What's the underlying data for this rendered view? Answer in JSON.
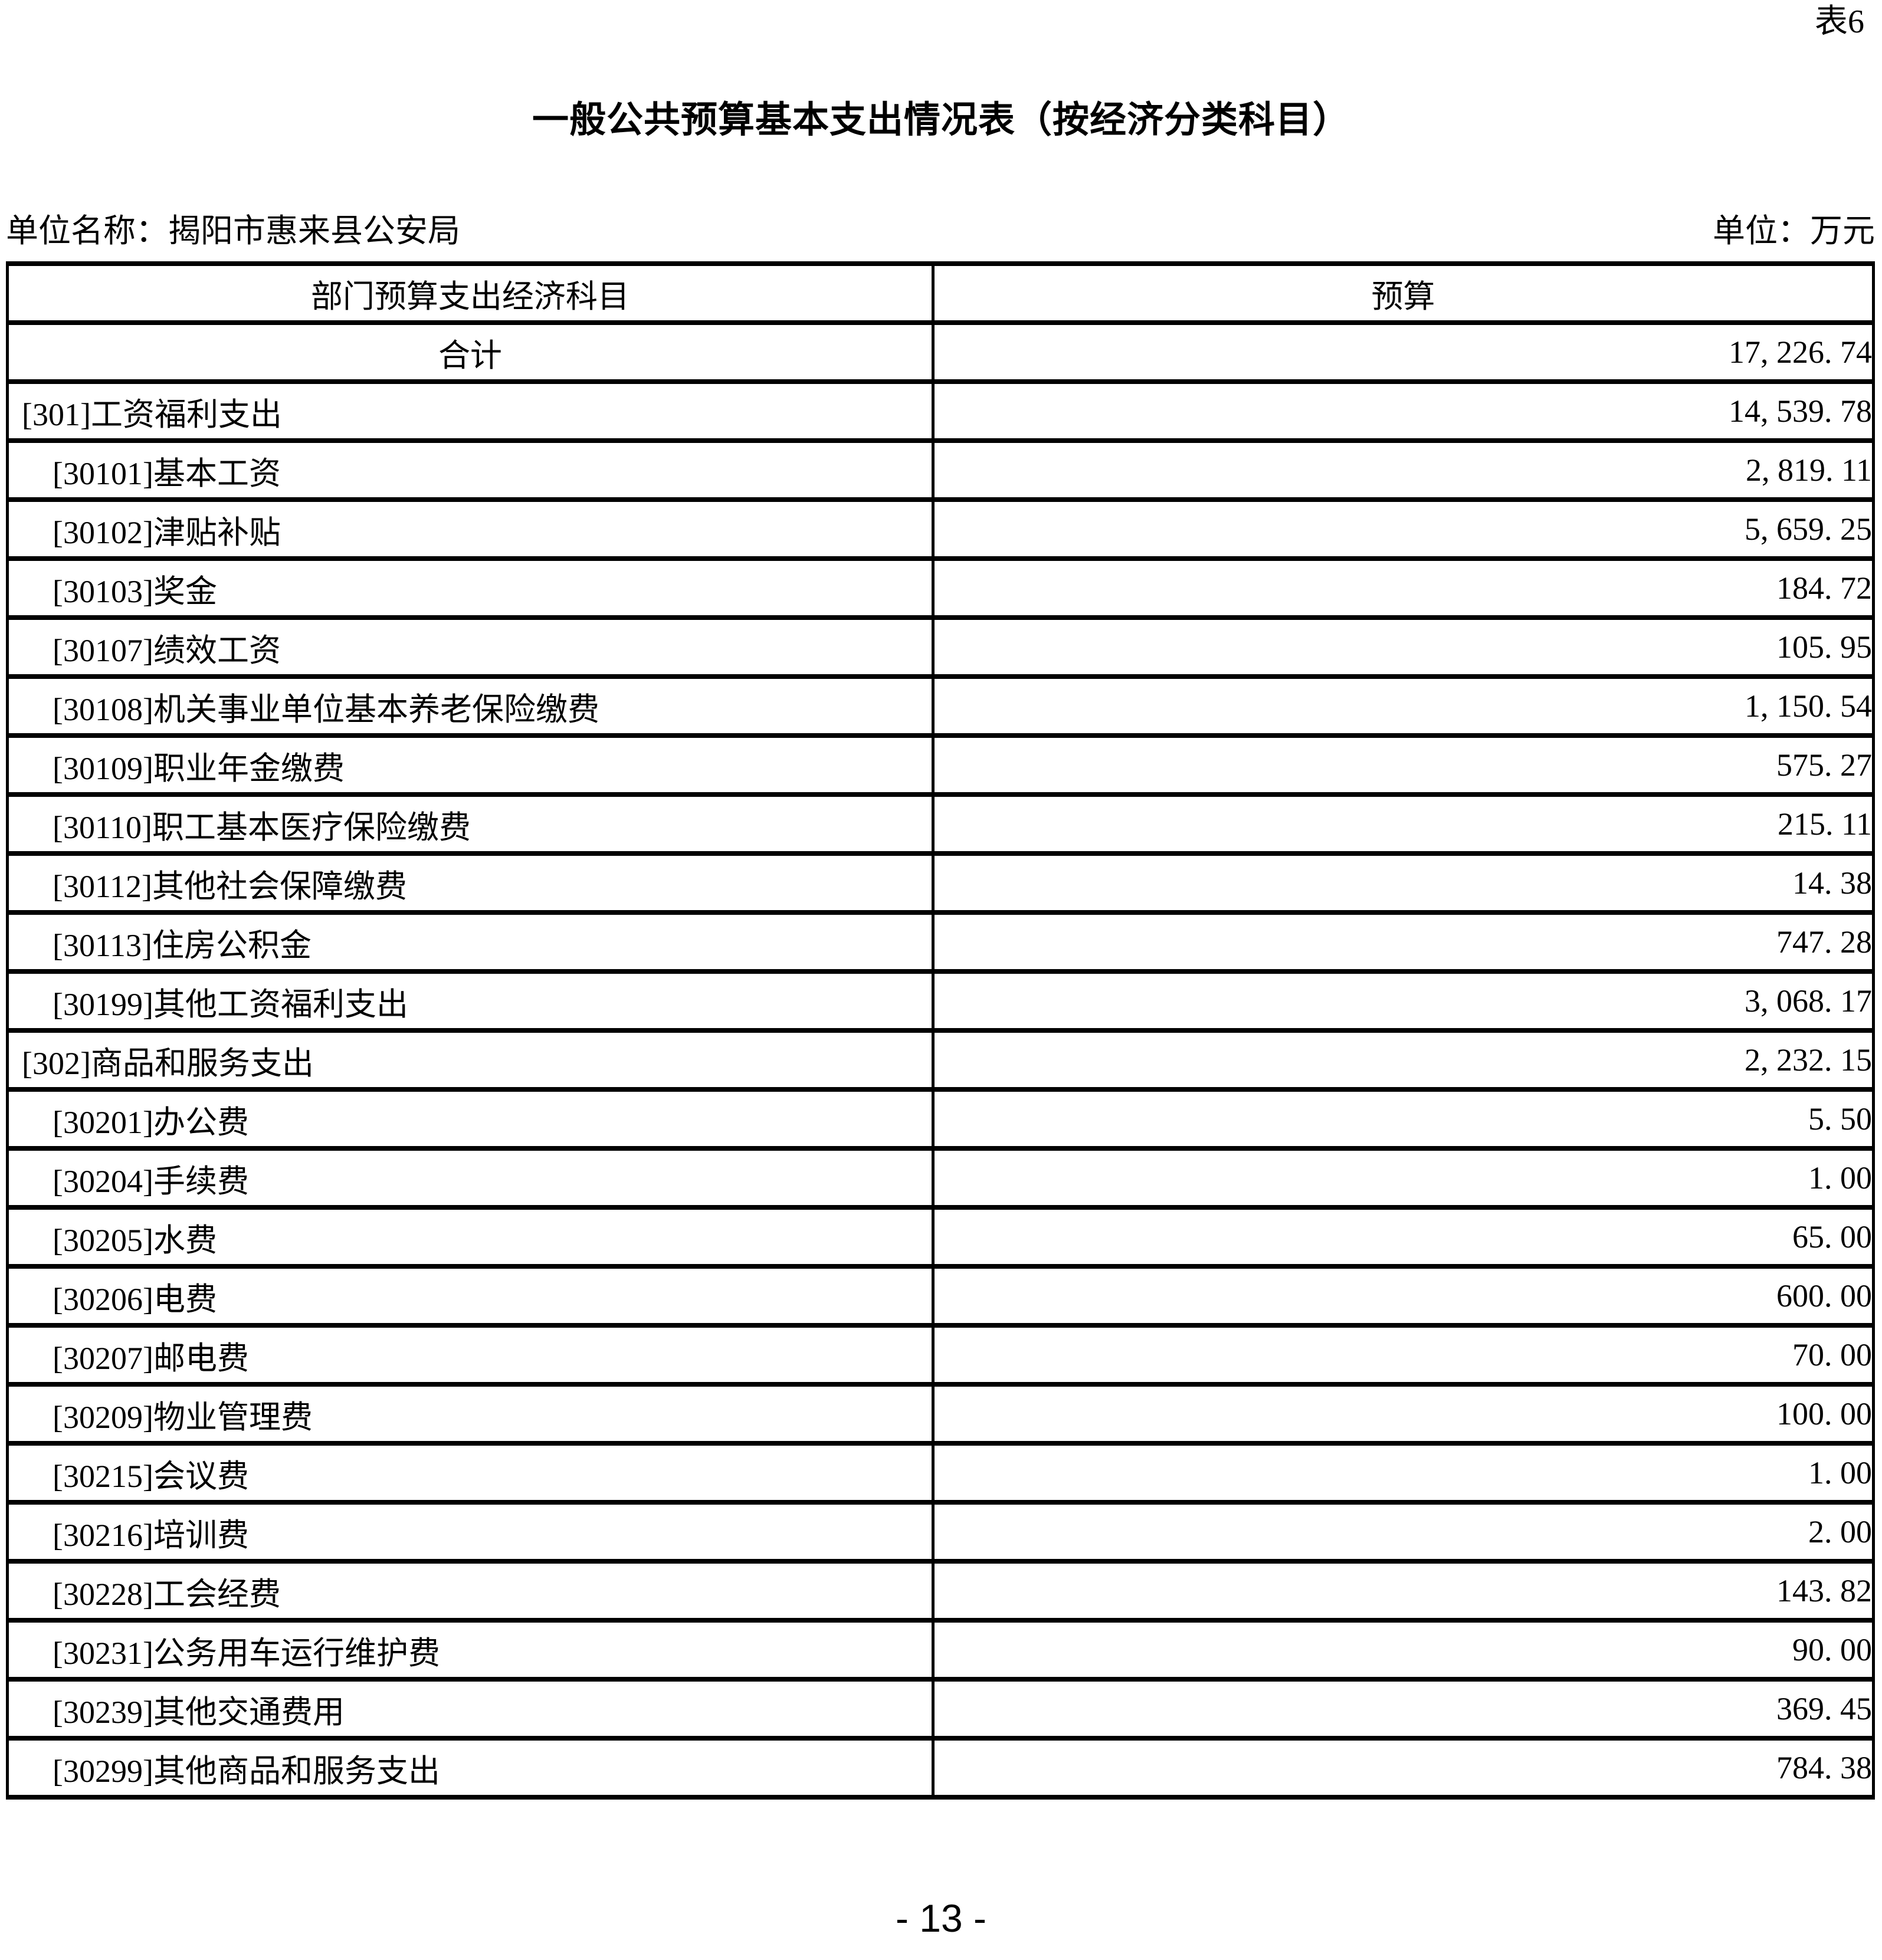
{
  "page": {
    "sheet_label": "表6",
    "title": "一般公共预算基本支出情况表（按经济分类科目）",
    "unit_name_line": "单位名称：揭阳市惠来县公安局",
    "unit_label": "单位：万元",
    "page_number": "- 13 -"
  },
  "table": {
    "columns": [
      "部门预算支出经济科目",
      "预算"
    ],
    "rows": [
      {
        "subject": "合计",
        "budget": "17, 226. 74",
        "style": "total"
      },
      {
        "subject": "[301]工资福利支出",
        "budget": "14, 539. 78",
        "style": "category"
      },
      {
        "subject": "[30101]基本工资",
        "budget": "2, 819. 11",
        "style": "item"
      },
      {
        "subject": "[30102]津贴补贴",
        "budget": "5, 659. 25",
        "style": "item"
      },
      {
        "subject": "[30103]奖金",
        "budget": "184. 72",
        "style": "item"
      },
      {
        "subject": "[30107]绩效工资",
        "budget": "105. 95",
        "style": "item"
      },
      {
        "subject": "[30108]机关事业单位基本养老保险缴费",
        "budget": "1, 150. 54",
        "style": "item"
      },
      {
        "subject": "[30109]职业年金缴费",
        "budget": "575. 27",
        "style": "item"
      },
      {
        "subject": "[30110]职工基本医疗保险缴费",
        "budget": "215. 11",
        "style": "item"
      },
      {
        "subject": "[30112]其他社会保障缴费",
        "budget": "14. 38",
        "style": "item"
      },
      {
        "subject": "[30113]住房公积金",
        "budget": "747. 28",
        "style": "item"
      },
      {
        "subject": "[30199]其他工资福利支出",
        "budget": "3, 068. 17",
        "style": "item"
      },
      {
        "subject": "[302]商品和服务支出",
        "budget": "2, 232. 15",
        "style": "category"
      },
      {
        "subject": "[30201]办公费",
        "budget": "5. 50",
        "style": "item"
      },
      {
        "subject": "[30204]手续费",
        "budget": "1. 00",
        "style": "item"
      },
      {
        "subject": "[30205]水费",
        "budget": "65. 00",
        "style": "item"
      },
      {
        "subject": "[30206]电费",
        "budget": "600. 00",
        "style": "item"
      },
      {
        "subject": "[30207]邮电费",
        "budget": "70. 00",
        "style": "item"
      },
      {
        "subject": "[30209]物业管理费",
        "budget": "100. 00",
        "style": "item"
      },
      {
        "subject": "[30215]会议费",
        "budget": "1. 00",
        "style": "item"
      },
      {
        "subject": "[30216]培训费",
        "budget": "2. 00",
        "style": "item"
      },
      {
        "subject": "[30228]工会经费",
        "budget": "143. 82",
        "style": "item"
      },
      {
        "subject": "[30231]公务用车运行维护费",
        "budget": "90. 00",
        "style": "item"
      },
      {
        "subject": "[30239]其他交通费用",
        "budget": "369. 45",
        "style": "item"
      },
      {
        "subject": "[30299]其他商品和服务支出",
        "budget": "784. 38",
        "style": "item"
      }
    ]
  }
}
